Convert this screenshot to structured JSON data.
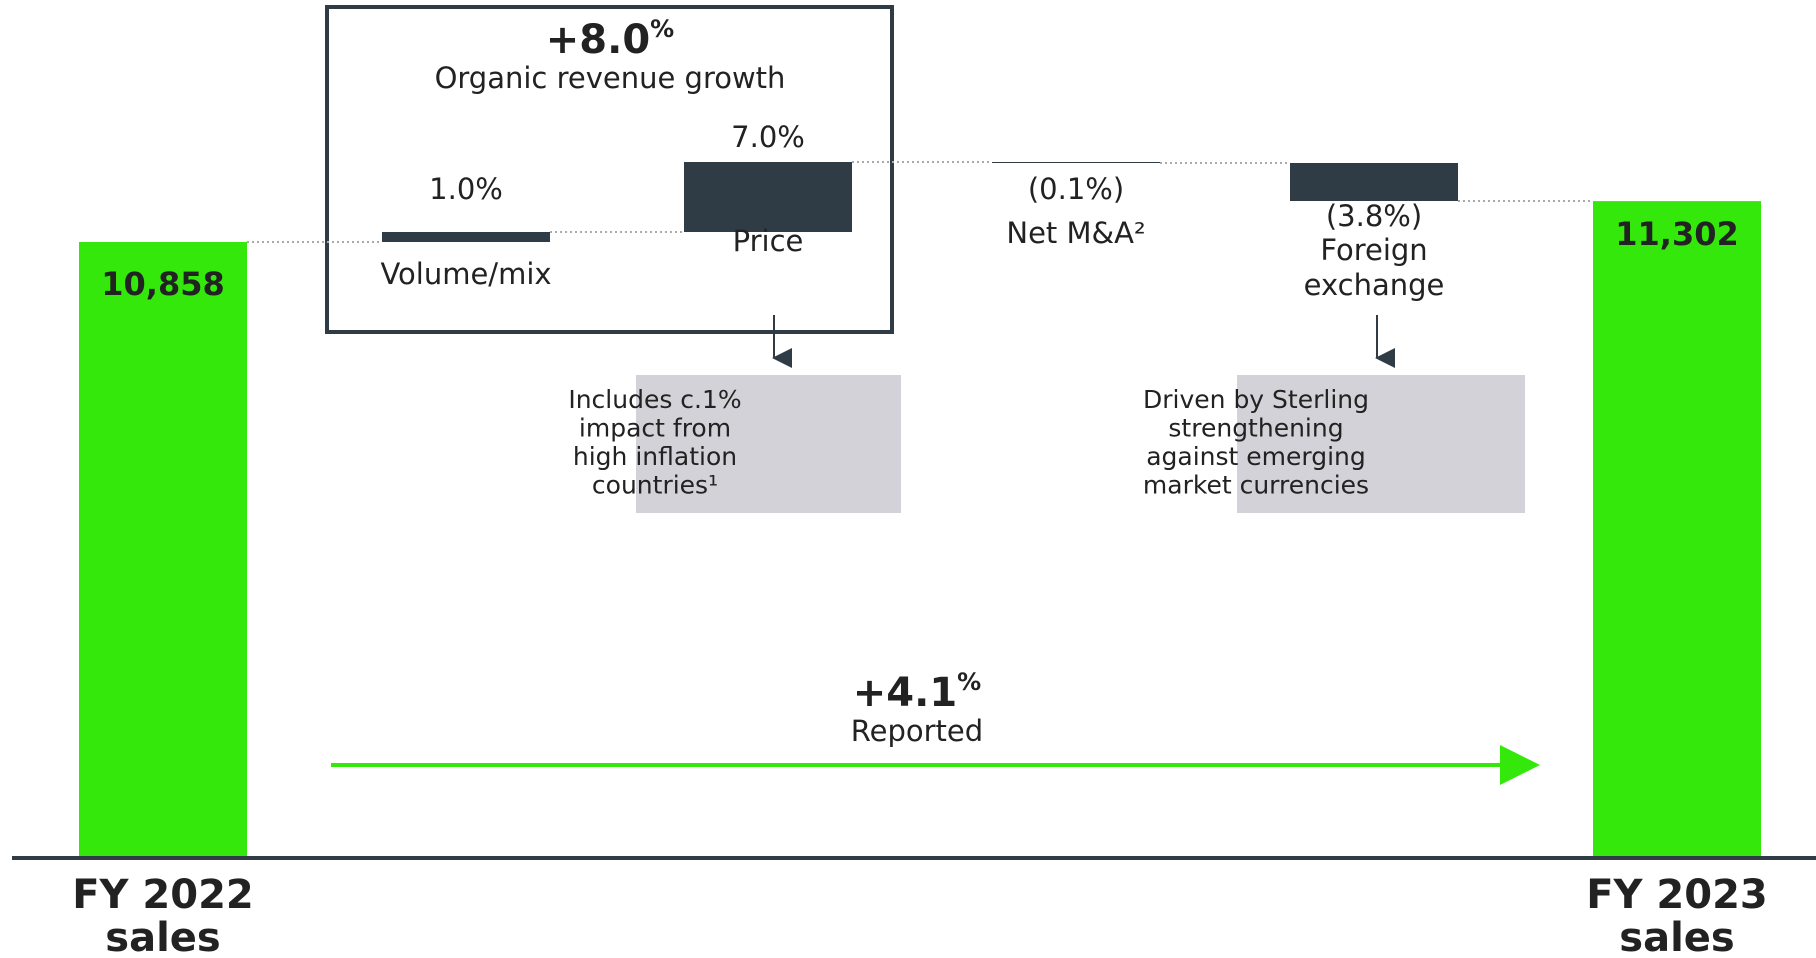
{
  "chart_data": {
    "type": "waterfall",
    "categories": [
      "FY 2022 sales",
      "Volume/mix",
      "Price",
      "Net M&A²",
      "Foreign exchange",
      "FY 2023 sales"
    ],
    "values": [
      10858,
      1.0,
      7.0,
      -0.1,
      -3.8,
      11302
    ],
    "value_labels": [
      "10,858",
      "1.0%",
      "7.0%",
      "(0.1%)",
      "(3.8%)",
      "11,302"
    ],
    "totals": [
      true,
      false,
      false,
      false,
      false,
      true
    ],
    "total_color": "#33e80a",
    "step_color": "#2f3b45",
    "annotations": {
      "organic": {
        "value": "+8.0%",
        "label": "Organic revenue growth"
      },
      "reported": {
        "value": "+4.1%",
        "label": "Reported"
      }
    },
    "notes": [
      {
        "lines": [
          "Includes c.1%",
          "impact from",
          "high inflation",
          "countries¹"
        ]
      },
      {
        "lines": [
          "Driven by Sterling",
          "strengthening",
          "against emerging",
          "market currencies"
        ]
      }
    ]
  }
}
